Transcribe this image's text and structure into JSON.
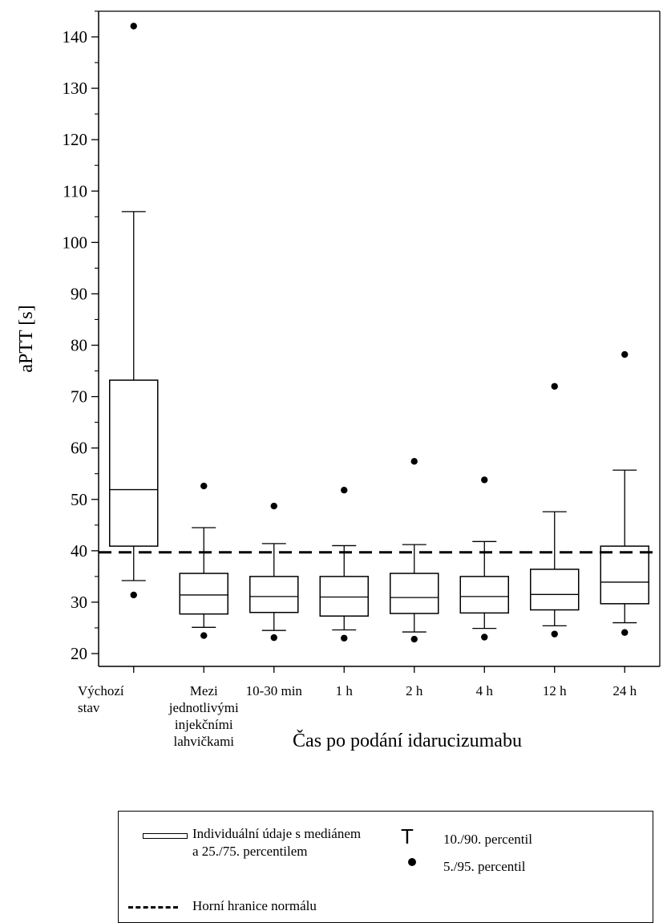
{
  "chart_data": {
    "type": "box",
    "ylabel": "aPTT [s]",
    "xlabel": "Čas po podání idarucizumabu",
    "ylim": [
      17,
      150
    ],
    "yticks": [
      20,
      30,
      40,
      50,
      60,
      70,
      80,
      90,
      100,
      110,
      120,
      130,
      140
    ],
    "reference_line": {
      "value": 39.7,
      "label": "Horní hranice normálu"
    },
    "categories": [
      [
        "Výchozí",
        "stav"
      ],
      [
        "Mezi",
        "jednotlivými",
        "injekčními",
        "lahvičkami"
      ],
      [
        "10-30 min"
      ],
      [
        "1 h"
      ],
      [
        "2 h"
      ],
      [
        "4 h"
      ],
      [
        "12 h"
      ],
      [
        "24 h"
      ]
    ],
    "boxes": [
      {
        "p5": 31.4,
        "p10": 34.2,
        "q1": 40.9,
        "median": 51.9,
        "q3": 73.2,
        "p90": 106.0,
        "p95": 142.1
      },
      {
        "p5": 23.5,
        "p10": 25.1,
        "q1": 27.7,
        "median": 31.4,
        "q3": 35.6,
        "p90": 44.5,
        "p95": 52.6
      },
      {
        "p5": 23.1,
        "p10": 24.5,
        "q1": 28.0,
        "median": 31.1,
        "q3": 35.0,
        "p90": 41.4,
        "p95": 48.7
      },
      {
        "p5": 23.0,
        "p10": 24.6,
        "q1": 27.3,
        "median": 31.0,
        "q3": 35.0,
        "p90": 41.0,
        "p95": 51.8
      },
      {
        "p5": 22.8,
        "p10": 24.2,
        "q1": 27.8,
        "median": 30.9,
        "q3": 35.6,
        "p90": 41.2,
        "p95": 57.4
      },
      {
        "p5": 23.2,
        "p10": 24.9,
        "q1": 27.9,
        "median": 31.1,
        "q3": 35.0,
        "p90": 41.8,
        "p95": 53.8
      },
      {
        "p5": 23.8,
        "p10": 25.4,
        "q1": 28.5,
        "median": 31.5,
        "q3": 36.4,
        "p90": 47.6,
        "p95": 72.0
      },
      {
        "p5": 24.1,
        "p10": 26.0,
        "q1": 29.7,
        "median": 33.9,
        "q3": 40.9,
        "p90": 55.7,
        "p95": 78.2
      }
    ],
    "grid": false
  },
  "legend": {
    "box_label_1": "Individuální údaje s mediánem",
    "box_label_2": "a 25./75. percentilem",
    "whisker_symbol": "T",
    "whisker_label": "10./90. percentil",
    "dot_label": "5./95. percentil",
    "dash_label": "Horní hranice normálu"
  }
}
